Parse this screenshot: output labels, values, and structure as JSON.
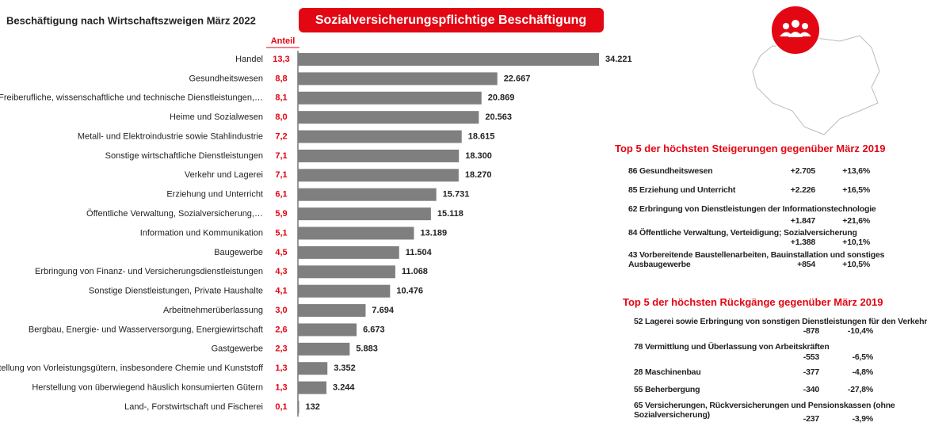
{
  "chart_data": {
    "type": "bar",
    "orientation": "horizontal",
    "title": "Beschäftigung nach Wirtschaftszweigen März 2022",
    "subtitle": "Sozialversicherungspflichtige Beschäftigung",
    "color": "#7f7f7f",
    "share_header": "Anteil",
    "categories": [
      "Handel",
      "Gesundheitswesen",
      "Freiberufliche, wissenschaftliche und technische Dienstleistungen,…",
      "Heime und Sozialwesen",
      "Metall- und Elektroindustrie sowie Stahlindustrie",
      "Sonstige wirtschaftliche Dienstleistungen",
      "Verkehr und Lagerei",
      "Erziehung und Unterricht",
      "Öffentliche Verwaltung, Sozialversicherung,…",
      "Information und Kommunikation",
      "Baugewerbe",
      "Erbringung von Finanz- und Versicherungsdienstleistungen",
      "Sonstige Dienstleistungen, Private Haushalte",
      "Arbeitnehmerüberlassung",
      "Bergbau, Energie- und Wasserversorgung, Energiewirtschaft",
      "Gastgewerbe",
      "Herstellung von Vorleistungsgütern, insbesondere Chemie und Kunststoff",
      "Herstellung von überwiegend häuslich konsumierten Gütern",
      "Land-, Forstwirtschaft und Fischerei"
    ],
    "shares": [
      "13,3",
      "8,8",
      "8,1",
      "8,0",
      "7,2",
      "7,1",
      "7,1",
      "6,1",
      "5,9",
      "5,1",
      "4,5",
      "4,3",
      "4,1",
      "3,0",
      "2,6",
      "2,3",
      "1,3",
      "1,3",
      "0,1"
    ],
    "values": [
      34221,
      22667,
      20869,
      20563,
      18615,
      18300,
      18270,
      15731,
      15118,
      13189,
      11504,
      11068,
      10476,
      7694,
      6673,
      5883,
      3352,
      3244,
      132
    ],
    "value_labels": [
      "34.221",
      "22.667",
      "20.869",
      "20.563",
      "18.615",
      "18.300",
      "18.270",
      "15.731",
      "15.118",
      "13.189",
      "11.504",
      "11.068",
      "10.476",
      "7.694",
      "6.673",
      "5.883",
      "3.352",
      "3.244",
      "132"
    ]
  },
  "increases": {
    "title": "Top 5 der höchsten Steigerungen gegenüber  März 2019",
    "rows": [
      {
        "label": "86 Gesundheitswesen",
        "change": "+2.705",
        "percent": "+13,6%"
      },
      {
        "label": "85 Erziehung und Unterricht",
        "change": "+2.226",
        "percent": "+16,5%"
      },
      {
        "label": "62 Erbringung von Dienstleistungen der Informationstechnologie",
        "change": "+1.847",
        "percent": "+21,6%"
      },
      {
        "label": "84 Öffentliche Verwaltung, Verteidigung; Sozialversicherung",
        "change": "+1.388",
        "percent": "+10,1%"
      },
      {
        "label": "43 Vorbereitende Baustellenarbeiten, Bauinstallation und sonstiges Ausbaugewerbe",
        "change": "+854",
        "percent": "+10,5%"
      }
    ]
  },
  "decreases": {
    "title": "Top 5 der höchsten Rückgänge gegenüber  März 2019",
    "rows": [
      {
        "label": "52 Lagerei sowie Erbringung von sonstigen Dienstleistungen für den Verkehr",
        "change": "-878",
        "percent": "-10,4%"
      },
      {
        "label": "78 Vermittlung und Überlassung von Arbeitskräften",
        "change": "-553",
        "percent": "-6,5%"
      },
      {
        "label": "28 Maschinenbau",
        "change": "-377",
        "percent": "-4,8%"
      },
      {
        "label": "55 Beherbergung",
        "change": "-340",
        "percent": "-27,8%"
      },
      {
        "label": "65 Versicherungen, Rückversicherungen und Pensionskassen (ohne Sozialversicherung)",
        "change": "-237",
        "percent": "-3,9%"
      }
    ]
  }
}
